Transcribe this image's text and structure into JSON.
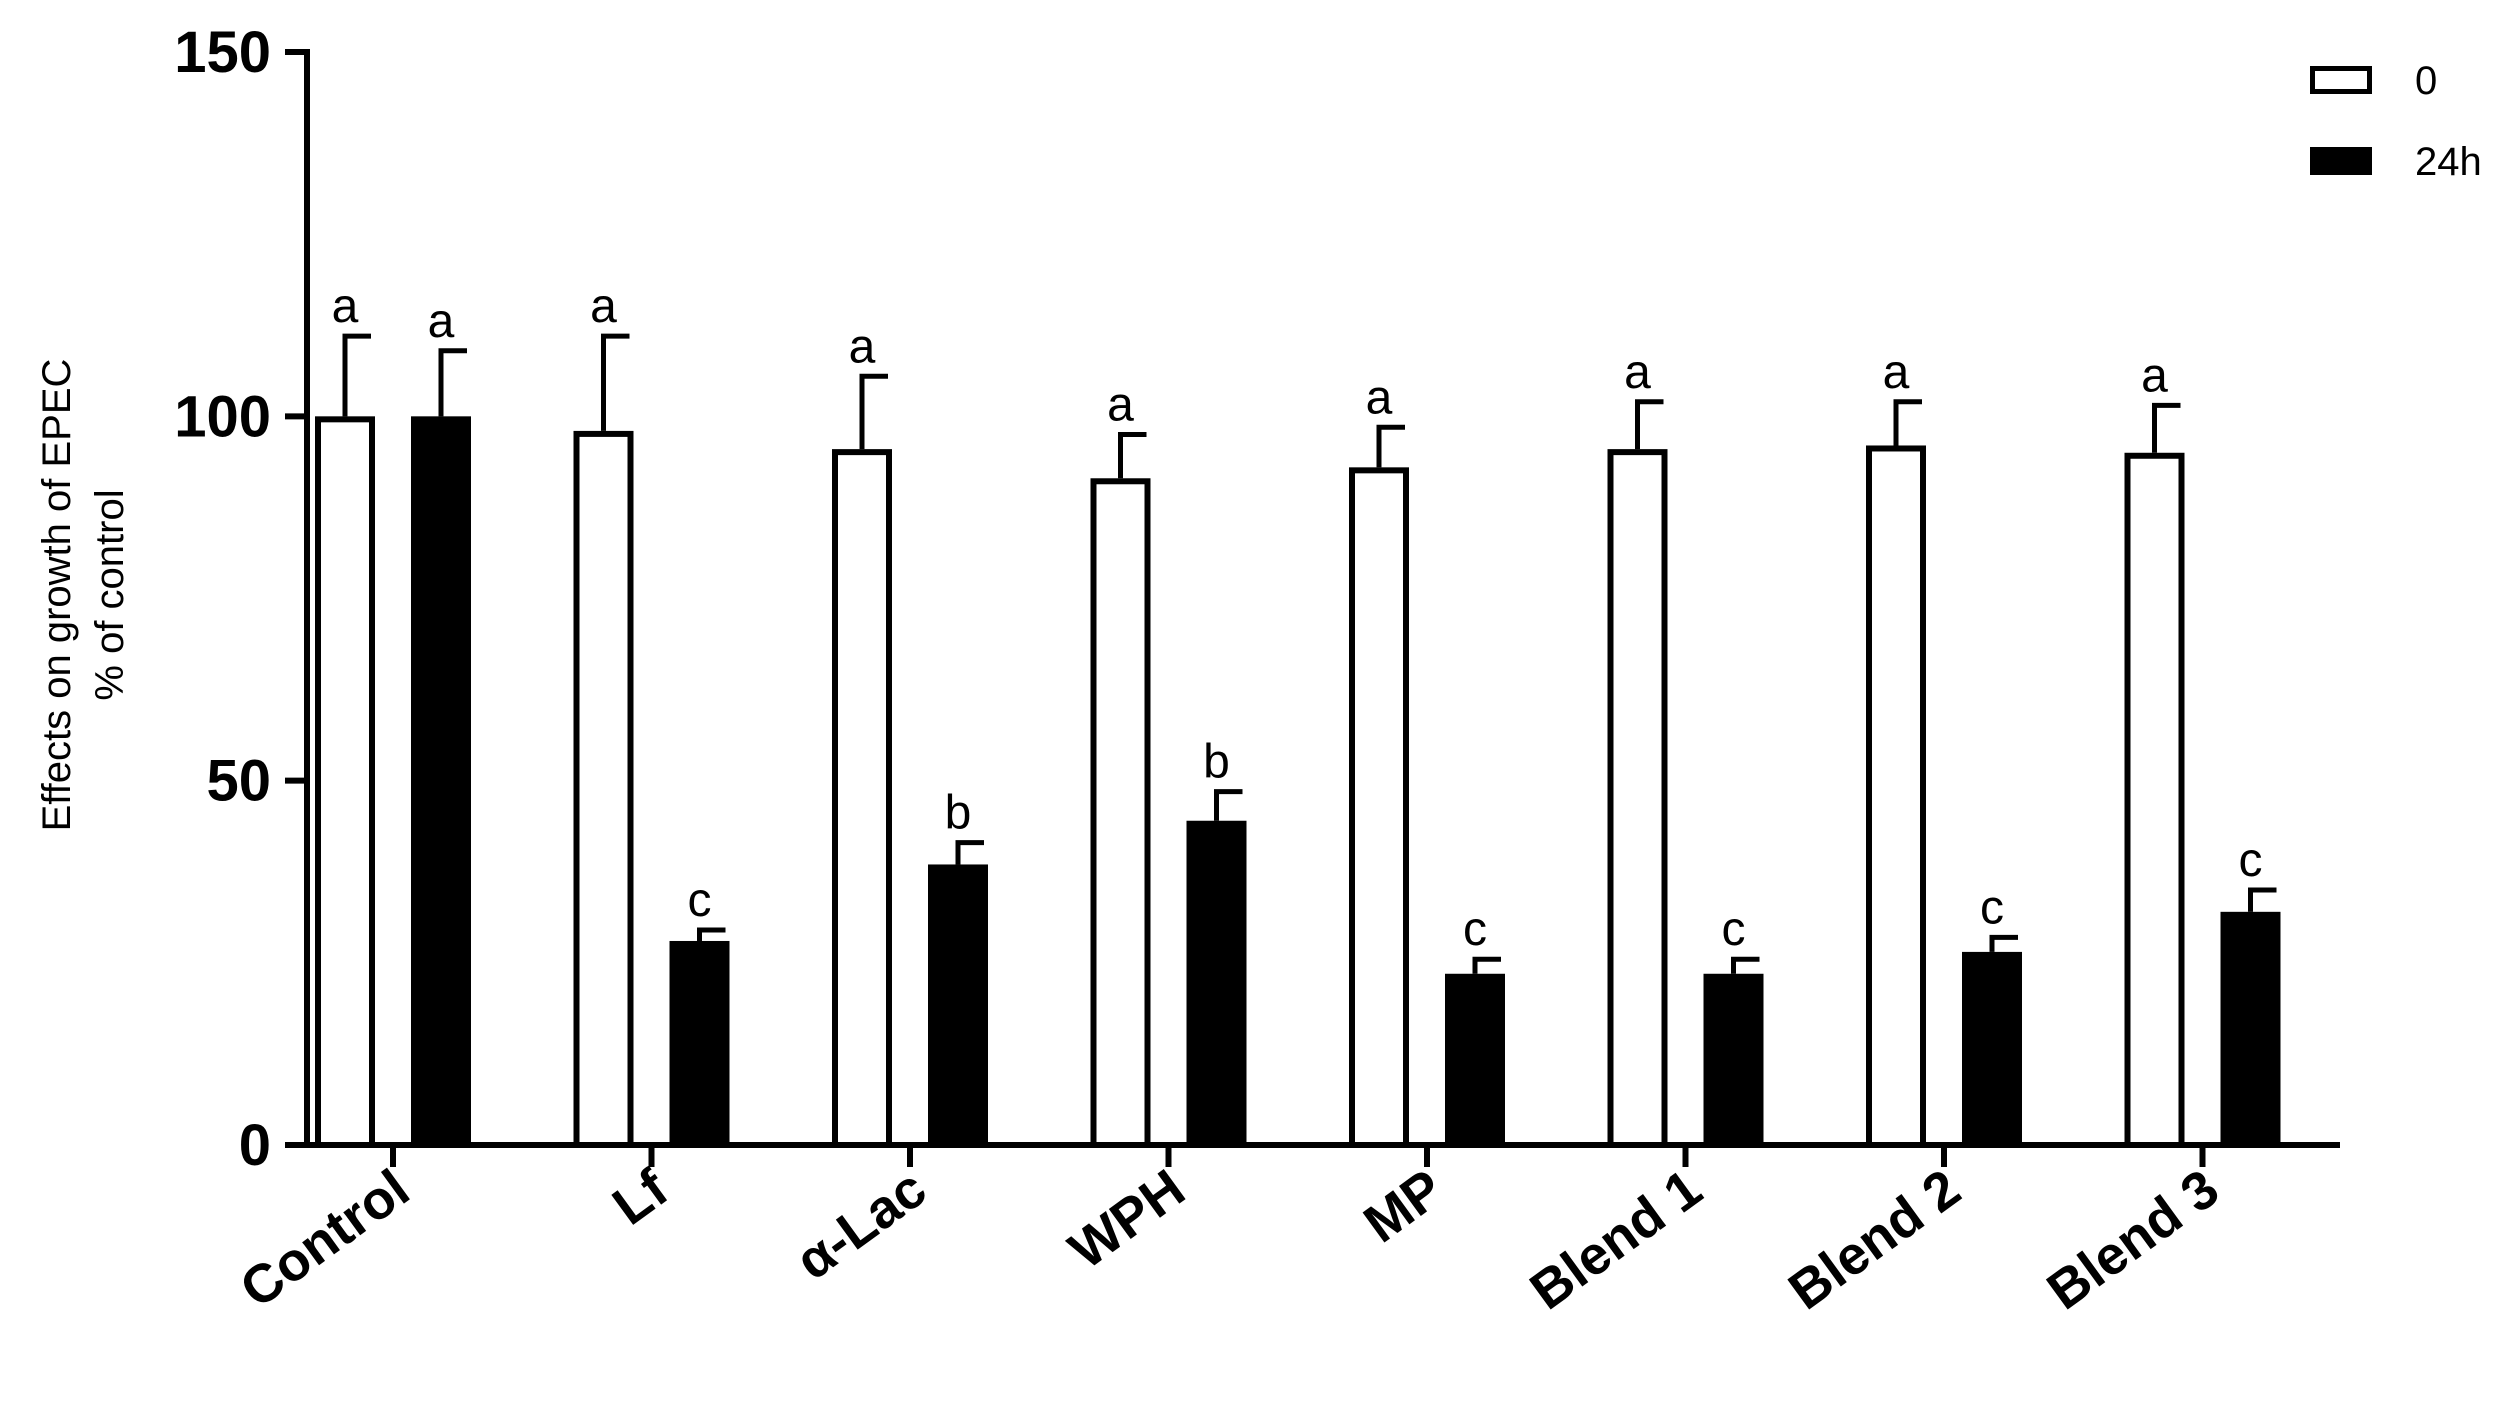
{
  "chart_data": {
    "type": "bar",
    "ylabel_lines": [
      "Effects on growth of EPEC",
      "% of control"
    ],
    "ylim": [
      0,
      150
    ],
    "yticks": [
      0,
      50,
      100,
      150
    ],
    "categories": [
      "Control",
      "Lf",
      "α-Lac",
      "WPH",
      "MP",
      "Blend 1",
      "Blend 2",
      "Blend 3"
    ],
    "series": [
      {
        "name": "0",
        "color": "#ffffff",
        "values": [
          100,
          98,
          95.5,
          91.5,
          93,
          95.5,
          96,
          95
        ],
        "errors": [
          11,
          13,
          10,
          6,
          5.5,
          6.5,
          6,
          6.5
        ],
        "letters": [
          "a",
          "a",
          "a",
          "a",
          "a",
          "a",
          "a",
          "a"
        ]
      },
      {
        "name": "24h",
        "color": "#000000",
        "values": [
          100,
          28,
          38.5,
          44.5,
          23.5,
          23.5,
          26.5,
          32
        ],
        "errors": [
          9,
          1.5,
          3,
          4,
          2,
          2,
          2,
          3
        ],
        "letters": [
          "a",
          "c",
          "b",
          "b",
          "c",
          "c",
          "c",
          "c"
        ]
      }
    ],
    "legend_position": "top-right",
    "grid": false
  }
}
